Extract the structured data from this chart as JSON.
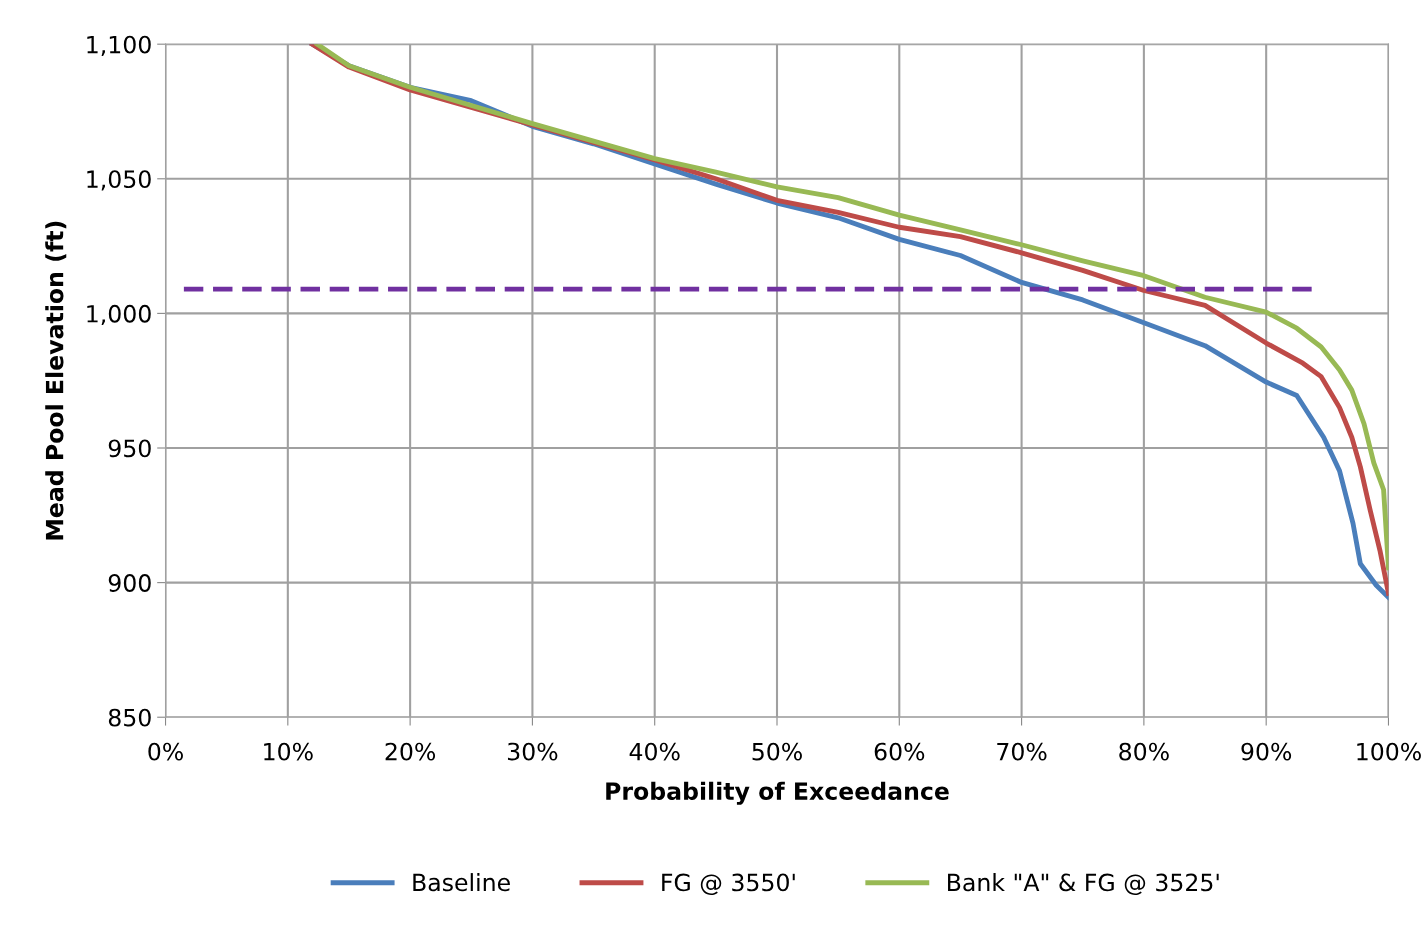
{
  "chart_data": {
    "type": "line",
    "xlabel": "Probability of Exceedance",
    "ylabel": "Mead Pool Elevation (ft)",
    "xlim": [
      0,
      100
    ],
    "ylim": [
      850,
      1100
    ],
    "xticks": [
      {
        "value": 0,
        "label": "0%"
      },
      {
        "value": 10,
        "label": "10%"
      },
      {
        "value": 20,
        "label": "20%"
      },
      {
        "value": 30,
        "label": "30%"
      },
      {
        "value": 40,
        "label": "40%"
      },
      {
        "value": 50,
        "label": "50%"
      },
      {
        "value": 60,
        "label": "60%"
      },
      {
        "value": 70,
        "label": "70%"
      },
      {
        "value": 80,
        "label": "80%"
      },
      {
        "value": 90,
        "label": "90%"
      },
      {
        "value": 100,
        "label": "100%"
      }
    ],
    "yticks": [
      {
        "value": 850,
        "label": "850"
      },
      {
        "value": 900,
        "label": "900"
      },
      {
        "value": 950,
        "label": "950"
      },
      {
        "value": 1000,
        "label": "1,000"
      },
      {
        "value": 1050,
        "label": "1,050"
      },
      {
        "value": 1100,
        "label": "1,100"
      }
    ],
    "grid": true,
    "legend": "bottom",
    "marker": "none",
    "line_style": "solid",
    "series": [
      {
        "name": "Baseline",
        "color": "#4a7ebb",
        "x": [
          12,
          15,
          20,
          25,
          30,
          35,
          40,
          45,
          50,
          55,
          60,
          65,
          70,
          75,
          80,
          85,
          90,
          92.5,
          94.7,
          96,
          97.1,
          97.7,
          99,
          100
        ],
        "values": [
          1100,
          1092,
          1084,
          1079,
          1069.5,
          1063,
          1055.5,
          1048,
          1041,
          1035.5,
          1027.5,
          1021.5,
          1011.5,
          1005,
          996.5,
          988,
          974.5,
          969.5,
          954,
          941.5,
          922,
          907,
          899,
          894.5
        ]
      },
      {
        "name": "FG @ 3550'",
        "color": "#be4b48",
        "x": [
          12,
          15,
          20,
          30,
          40,
          45,
          50,
          55,
          60,
          65,
          70,
          75,
          80,
          85,
          90,
          93,
          94.5,
          96,
          97,
          97.7,
          98.5,
          99.3,
          100
        ],
        "values": [
          1100,
          1091.5,
          1083,
          1070,
          1057,
          1050,
          1042,
          1037.5,
          1032,
          1028.5,
          1022.5,
          1016,
          1008.5,
          1003,
          989,
          981.5,
          976.5,
          965,
          954,
          943,
          927,
          912,
          896
        ]
      },
      {
        "name": "Bank \"A\" & FG @ 3525'",
        "color": "#98b954",
        "x": [
          12.4,
          15,
          20,
          30,
          40,
          45,
          50,
          55,
          60,
          65,
          70,
          75,
          80,
          85,
          90,
          92.5,
          94.5,
          96,
          97,
          98,
          98.8,
          99.6,
          100
        ],
        "values": [
          1100,
          1092,
          1084,
          1070.5,
          1057.5,
          1052.5,
          1047,
          1043,
          1036.5,
          1031,
          1025.5,
          1019.5,
          1014,
          1006,
          1000.5,
          994.5,
          987.5,
          979,
          971.5,
          959,
          944.5,
          934.5,
          905.5
        ]
      },
      {
        "color": "#7030a0",
        "line_style": "dashed",
        "x": [
          1.5,
          94
        ],
        "values": [
          1009,
          1009
        ]
      }
    ]
  }
}
